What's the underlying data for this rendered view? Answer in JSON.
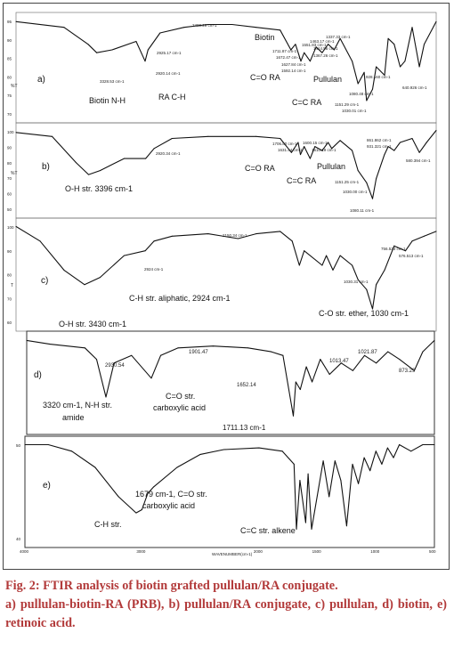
{
  "caption": {
    "title": "Fig. 2: FTIR analysis of biotin grafted pullulan/RA conjugate.",
    "body": "a) pullulan-biotin-RA (PRB), b) pullulan/RA conjugate, c) pullulan, d) biotin, e) retinoic acid."
  },
  "chart_data": [
    {
      "type": "line",
      "panel": "a)",
      "ylabel": "%T",
      "ytick_labels": [
        "95",
        "90",
        "85",
        "80",
        "75",
        "70"
      ],
      "x": [
        4000,
        3600,
        3400,
        3328,
        3200,
        3000,
        2925,
        2900,
        2800,
        2600,
        2400,
        2200,
        2000,
        1800,
        1710,
        1672,
        1627,
        1600,
        1550,
        1500,
        1450,
        1400,
        1350,
        1300,
        1200,
        1151,
        1100,
        1080,
        1030,
        1000,
        930,
        900,
        850,
        800,
        760,
        700,
        640,
        600,
        500
      ],
      "y": [
        94,
        92,
        86,
        83,
        84,
        87,
        80,
        84,
        90,
        92,
        93,
        93,
        92,
        91,
        84,
        86,
        80,
        83,
        80,
        85,
        83,
        86,
        84,
        88,
        80,
        72,
        76,
        66,
        70,
        78,
        75,
        88,
        86,
        78,
        80,
        92,
        78,
        86,
        94
      ],
      "annotations": [
        "3328.53 cm-1",
        "2925.17 cm-1",
        "2920.14 cm-1",
        "2400.29 cm-1",
        "Biotin",
        "1711.87 cm-1",
        "1672.47 cm-1",
        "1627.84 cm-1",
        "1592.14 cm-1",
        "1551.83 cm-1",
        "1463.17 cm-1",
        "1414.56 cm-1",
        "1367.26 cm-1",
        "1337.33 cm-1",
        "1151.29 cm-1",
        "1030.01 cm-1",
        "1080.48 cm-1",
        "928.160 cm-1",
        "640.926 cm-1",
        "Biotin N-H",
        "RA C-H",
        "C=O RA",
        "C=C RA",
        "Pullulan",
        "a)"
      ]
    },
    {
      "type": "line",
      "panel": "b)",
      "ylabel": "%T",
      "ytick_labels": [
        "100",
        "90",
        "80",
        "70",
        "60",
        "50"
      ],
      "x": [
        4000,
        3700,
        3500,
        3396,
        3300,
        3100,
        2920,
        2850,
        2700,
        2400,
        2000,
        1800,
        1706,
        1650,
        1631,
        1600,
        1550,
        1510,
        1450,
        1400,
        1370,
        1300,
        1200,
        1151,
        1080,
        1030,
        1000,
        931,
        900,
        850,
        800,
        700,
        640,
        580,
        500
      ],
      "y": [
        95,
        93,
        80,
        74,
        76,
        82,
        82,
        87,
        92,
        93,
        93,
        92,
        85,
        90,
        84,
        88,
        82,
        88,
        86,
        90,
        87,
        91,
        86,
        76,
        70,
        62,
        72,
        84,
        88,
        86,
        90,
        92,
        85,
        90,
        96
      ],
      "annotations": [
        "3396 cm-1",
        "2920.34 cm-1",
        "1706.80 cm-1",
        "1631.44 cm-1",
        "1600.15 cm-1",
        "1510.19 cm-1",
        "1151.25 cm-1",
        "1080.11 cm-1",
        "1030.00 cm-1",
        "931.321 cm-1",
        "861.862 cm-1",
        "580.394 cm-1",
        "O-H str. 3396 cm-1",
        "C=O RA",
        "C=C RA",
        "Pullulan",
        "b)"
      ]
    },
    {
      "type": "line",
      "panel": "c)",
      "ylabel": "T",
      "ytick_labels": [
        "100",
        "90",
        "80",
        "70",
        "60"
      ],
      "x": [
        4000,
        3800,
        3600,
        3430,
        3300,
        3100,
        2924,
        2850,
        2700,
        2400,
        2150,
        2000,
        1800,
        1700,
        1640,
        1600,
        1450,
        1415,
        1360,
        1300,
        1200,
        1150,
        1080,
        1030,
        1000,
        930,
        850,
        756,
        700,
        600,
        500
      ],
      "y": [
        96,
        90,
        78,
        72,
        75,
        84,
        86,
        90,
        92,
        93,
        91,
        93,
        94,
        90,
        80,
        86,
        80,
        84,
        78,
        84,
        80,
        74,
        70,
        62,
        72,
        78,
        88,
        86,
        90,
        92,
        94
      ],
      "annotations": [
        "3430 cm-1",
        "2924 cm-1",
        "2150.34 cm-1",
        "1030.31 cm-1",
        "756.523 cm-1",
        "576.513 cm-1",
        "C-H str. aliphatic, 2924 cm-1",
        "O-H str. 3430 cm-1",
        "C-O str. ether, 1030 cm-1",
        "c)"
      ]
    },
    {
      "type": "line",
      "panel": "d)",
      "x": [
        4000,
        3800,
        3500,
        3400,
        3320,
        3250,
        3100,
        2930,
        2850,
        2700,
        2400,
        2100,
        1901,
        1800,
        1711,
        1690,
        1652,
        1600,
        1550,
        1480,
        1400,
        1300,
        1200,
        1100,
        1000,
        900,
        800,
        673,
        600,
        500
      ],
      "y": [
        92,
        90,
        88,
        82,
        62,
        80,
        84,
        72,
        84,
        88,
        89,
        88,
        86,
        84,
        52,
        70,
        66,
        78,
        70,
        82,
        74,
        80,
        76,
        84,
        80,
        86,
        82,
        76,
        86,
        92
      ],
      "annotations": [
        "2930.54",
        "1901.47",
        "1013.47",
        "1021.87",
        "873.29",
        "1652.14",
        "1711.13 cm-1",
        "3320 cm-1, N-H str. amide",
        "C=O str. carboxylic acid",
        "d)"
      ]
    },
    {
      "type": "line",
      "panel": "e)",
      "ytick_labels": [
        "50",
        "40"
      ],
      "xlabel": "WAVENUMBER(cm-1)",
      "xtick_labels": [
        "4000",
        "3000",
        "2000",
        "1500",
        "1000",
        "500"
      ],
      "x": [
        4000,
        3800,
        3600,
        3400,
        3200,
        3050,
        3000,
        2950,
        2900,
        2700,
        2500,
        2300,
        2000,
        1800,
        1700,
        1679,
        1650,
        1600,
        1580,
        1550,
        1450,
        1400,
        1350,
        1300,
        1250,
        1200,
        1150,
        1100,
        1050,
        1000,
        950,
        900,
        850,
        800,
        700,
        600,
        500
      ],
      "y": [
        92,
        92,
        88,
        78,
        60,
        50,
        52,
        62,
        66,
        78,
        86,
        89,
        90,
        88,
        80,
        40,
        70,
        44,
        74,
        40,
        82,
        60,
        82,
        70,
        42,
        80,
        68,
        84,
        76,
        88,
        80,
        90,
        84,
        92,
        88,
        92,
        92
      ],
      "annotations": [
        "C-H str.",
        "1679 cm-1, C=O str. carboxylic acid",
        "C=C str. alkene",
        "e)"
      ]
    }
  ]
}
